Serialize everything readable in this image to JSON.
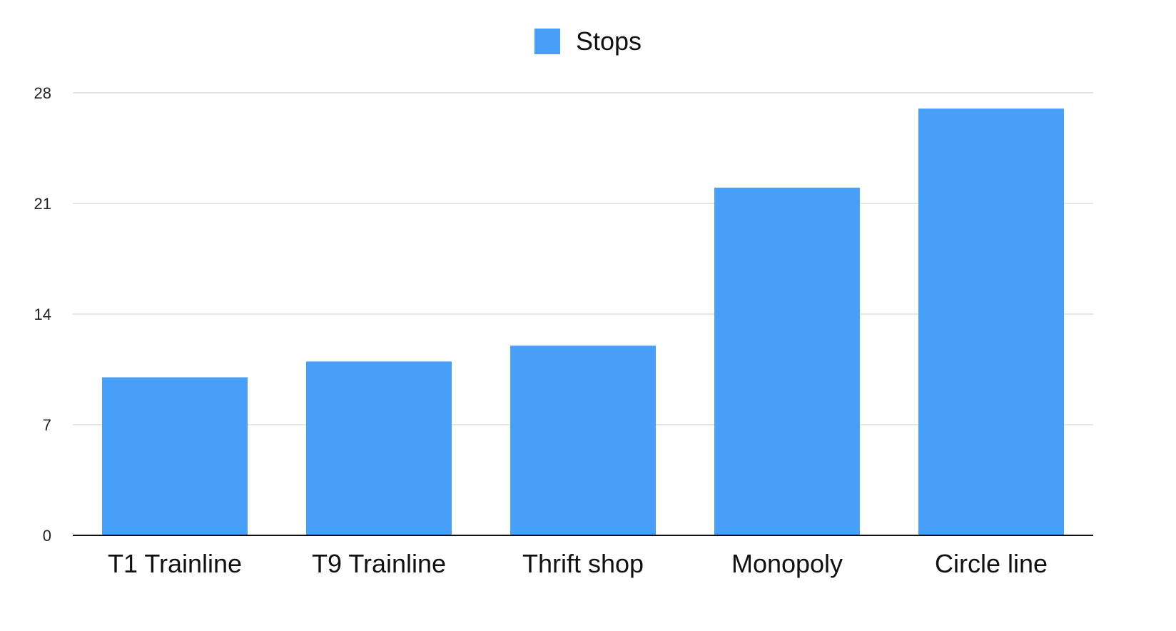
{
  "chart_data": {
    "type": "bar",
    "categories": [
      "T1 Trainline",
      "T9 Trainline",
      "Thrift shop",
      "Monopoly",
      "Circle line"
    ],
    "series": [
      {
        "name": "Stops",
        "values": [
          10,
          11,
          12,
          22,
          27
        ]
      }
    ],
    "title": "",
    "xlabel": "",
    "ylabel": "",
    "ylim": [
      0,
      28
    ],
    "yticks": [
      "0",
      "7",
      "14",
      "21",
      "28"
    ],
    "grid": true,
    "legend_position": "top-center",
    "colors": {
      "bar": "#489FF8",
      "grid": "#cccccc",
      "axis": "#111111"
    }
  }
}
